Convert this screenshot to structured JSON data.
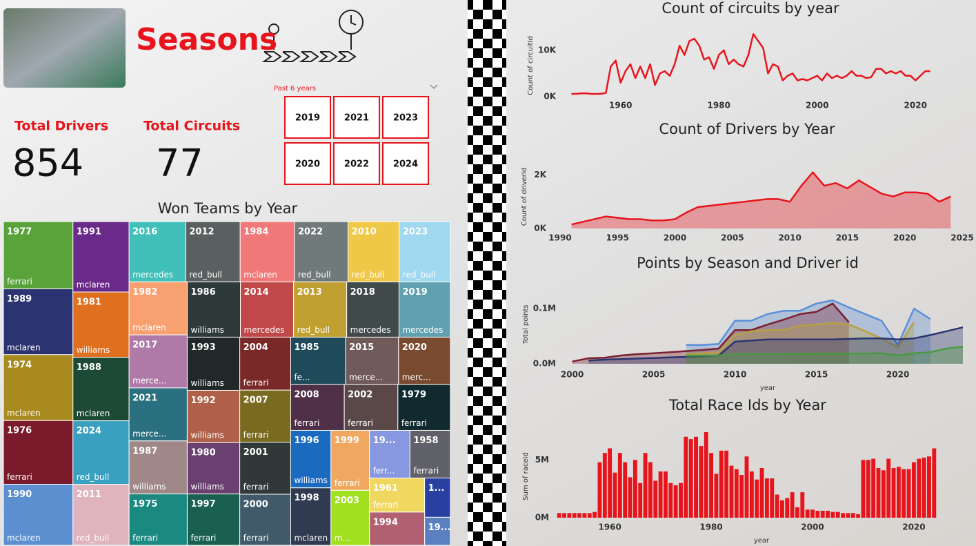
{
  "header": {
    "title": "Seasons"
  },
  "kpis": [
    {
      "label": "Total Drivers",
      "value": 854
    },
    {
      "label": "Total Circuits",
      "value": 77
    }
  ],
  "slicer": {
    "label": "Past 6 years",
    "options": [
      2019,
      2020,
      2021,
      2022,
      2023,
      2024
    ]
  },
  "chart_data": [
    {
      "type": "treemap",
      "title": "Won Teams by Year",
      "items": [
        {
          "label": "1977",
          "team": "ferrari",
          "value": 97,
          "color": "#5aa33a"
        },
        {
          "label": "1989",
          "team": "mclaren",
          "value": 95,
          "color": "#2b3470"
        },
        {
          "label": "1974",
          "team": "mclaren",
          "value": 95,
          "color": "#a88a1e"
        },
        {
          "label": "1976",
          "team": "ferrari",
          "value": 92,
          "color": "#7a1a2a"
        },
        {
          "label": "1990",
          "team": "mclaren",
          "value": 88,
          "color": "#5b8fd0"
        },
        {
          "label": "1991",
          "team": "mclaren",
          "value": 82,
          "color": "#6a2a8a"
        },
        {
          "label": "1981",
          "team": "williams",
          "value": 76,
          "color": "#e07020"
        },
        {
          "label": "1988",
          "team": "mclaren",
          "value": 74,
          "color": "#1d4a35"
        },
        {
          "label": "2024",
          "team": "red_bull",
          "value": 74,
          "color": "#3aa0c0"
        },
        {
          "label": "2011",
          "team": "red_bull",
          "value": 71,
          "color": "#e0b4bc"
        },
        {
          "label": "2016",
          "team": "mercedes",
          "value": 71,
          "color": "#40c0b8"
        },
        {
          "label": "2012",
          "team": "red_bull",
          "value": 68,
          "color": "#5a6060"
        },
        {
          "label": "1984",
          "team": "mclaren",
          "value": 68,
          "color": "#f07878"
        },
        {
          "label": "2022",
          "team": "red_bull",
          "value": 67,
          "color": "#707a7a"
        },
        {
          "label": "2010",
          "team": "red_bull",
          "value": 64,
          "color": "#f0c848"
        },
        {
          "label": "2023",
          "team": "red_bull",
          "value": 64,
          "color": "#a0d8f0"
        },
        {
          "label": "1982",
          "team": "mclaren",
          "value": 64,
          "color": "#f8a070"
        },
        {
          "label": "2017",
          "team": "merce...",
          "value": 64,
          "color": "#b07aa8"
        },
        {
          "label": "2021",
          "team": "merce...",
          "value": 64,
          "color": "#2a7080"
        },
        {
          "label": "1987",
          "team": "williams",
          "value": 64,
          "color": "#a08888"
        },
        {
          "label": "1975",
          "team": "ferrari",
          "value": 62,
          "color": "#1a8a80"
        },
        {
          "label": "1986",
          "team": "williams",
          "value": 61,
          "color": "#2e3a3a"
        },
        {
          "label": "2014",
          "team": "mercedes",
          "value": 61,
          "color": "#c04848"
        },
        {
          "label": "2013",
          "team": "red_bull",
          "value": 61,
          "color": "#c0a030"
        },
        {
          "label": "2018",
          "team": "mercedes",
          "value": 60,
          "color": "#404a4a"
        },
        {
          "label": "2019",
          "team": "mercedes",
          "value": 59,
          "color": "#60a0b0"
        },
        {
          "label": "1993",
          "team": "williams",
          "value": 58,
          "color": "#202828"
        },
        {
          "label": "1992",
          "team": "williams",
          "value": 57,
          "color": "#b06048"
        },
        {
          "label": "1980",
          "team": "williams",
          "value": 56,
          "color": "#6a4070"
        },
        {
          "label": "1997",
          "team": "ferrari",
          "value": 56,
          "color": "#1a6050"
        },
        {
          "label": "2004",
          "team": "ferrari",
          "value": 56,
          "color": "#7a2828"
        },
        {
          "label": "2007",
          "team": "ferrari",
          "value": 55,
          "color": "#7a6a20"
        },
        {
          "label": "2001",
          "team": "ferrari",
          "value": 55,
          "color": "#303838"
        },
        {
          "label": "2000",
          "team": "ferrari",
          "value": 54,
          "color": "#405a6a"
        },
        {
          "label": "1985",
          "team": "fe...",
          "value": 54,
          "color": "#1e4a5a"
        },
        {
          "label": "2015",
          "team": "merce...",
          "value": 52,
          "color": "#705a5a"
        },
        {
          "label": "2020",
          "team": "merc...",
          "value": 51,
          "color": "#7a4a30"
        },
        {
          "label": "2008",
          "team": "ferrari",
          "value": 51,
          "color": "#503048"
        },
        {
          "label": "2002",
          "team": "ferrari",
          "value": 51,
          "color": "#5a4848"
        },
        {
          "label": "1979",
          "team": "ferrari",
          "value": 50,
          "color": "#102a30"
        },
        {
          "label": "1996",
          "team": "williams",
          "value": 48,
          "color": "#1a6abf"
        },
        {
          "label": "1998",
          "team": "mclaren",
          "value": 48,
          "color": "#303a50"
        },
        {
          "label": "1999",
          "team": "ferrari",
          "value": 48,
          "color": "#f0a860"
        },
        {
          "label": "2003",
          "team": "m...",
          "value": 44,
          "color": "#a0e020"
        },
        {
          "label": "19...",
          "team": "ferr...",
          "value": 40,
          "color": "#8898e0"
        },
        {
          "label": "1958",
          "team": "ferrari",
          "value": 40,
          "color": "#606068"
        },
        {
          "label": "1961",
          "team": "ferrari",
          "value": 39,
          "color": "#f0d860"
        },
        {
          "label": "1994",
          "value": 38,
          "color": "#b06070"
        },
        {
          "label": "1...",
          "value": 21,
          "color": "#2840a0"
        },
        {
          "label": "19...",
          "value": 15,
          "color": "#5a80c0"
        }
      ]
    },
    {
      "type": "line",
      "title": "Count of circuits by year",
      "y_label": "Count of circuitId",
      "color": "#e8141c",
      "x": [
        1950,
        1951,
        1952,
        1953,
        1954,
        1955,
        1956,
        1957,
        1958,
        1959,
        1960,
        1961,
        1962,
        1963,
        1964,
        1965,
        1966,
        1967,
        1968,
        1969,
        1970,
        1971,
        1972,
        1973,
        1974,
        1975,
        1976,
        1977,
        1978,
        1979,
        1980,
        1981,
        1982,
        1983,
        1984,
        1985,
        1986,
        1987,
        1988,
        1989,
        1990,
        1991,
        1992,
        1993,
        1994,
        1995,
        1996,
        1997,
        1998,
        1999,
        2000,
        2001,
        2002,
        2003,
        2004,
        2005,
        2006,
        2007,
        2008,
        2009,
        2010,
        2011,
        2012,
        2013,
        2014,
        2015,
        2016,
        2017,
        2018,
        2019,
        2020,
        2021,
        2022,
        2023
      ],
      "values": [
        600,
        600,
        700,
        700,
        600,
        600,
        600,
        800,
        6500,
        7800,
        3000,
        5500,
        7000,
        4000,
        6500,
        4000,
        7000,
        2500,
        5000,
        5500,
        4500,
        7000,
        11000,
        9000,
        12000,
        12500,
        11000,
        8000,
        8500,
        6000,
        9000,
        10000,
        7000,
        8000,
        7000,
        6500,
        9000,
        13500,
        12000,
        10500,
        5000,
        7000,
        6500,
        3500,
        4500,
        5000,
        3500,
        3800,
        3500,
        4000,
        4500,
        3500,
        5000,
        4000,
        4500,
        4000,
        4500,
        5500,
        4500,
        4500,
        4000,
        4200,
        6000,
        6000,
        5000,
        5500,
        5000,
        5500,
        4500,
        4500,
        3500,
        4500,
        5500,
        5500
      ],
      "xlim": [
        1946,
        2026
      ],
      "xticks": [
        1960,
        1980,
        2000,
        2020
      ],
      "ylim": [
        0,
        14000
      ],
      "yticks": [
        {
          "value": 0,
          "label": "0K"
        },
        {
          "value": 10000,
          "label": "10K"
        }
      ]
    },
    {
      "type": "area",
      "title": "Count of Drivers by Year",
      "y_label": "Count of driverId",
      "color": "#e8141c",
      "x": [
        1991,
        1992,
        1993,
        1994,
        1995,
        1996,
        1997,
        1998,
        1999,
        2000,
        2001,
        2002,
        2003,
        2004,
        2005,
        2006,
        2007,
        2008,
        2009,
        2010,
        2011,
        2012,
        2013,
        2014,
        2015,
        2016,
        2017,
        2018,
        2019,
        2020,
        2021,
        2022,
        2023,
        2024
      ],
      "values": [
        150,
        250,
        350,
        450,
        400,
        350,
        350,
        300,
        300,
        350,
        600,
        800,
        850,
        900,
        950,
        1000,
        1050,
        1100,
        1100,
        1000,
        1600,
        2100,
        1600,
        1700,
        1500,
        1800,
        1550,
        1300,
        1200,
        1350,
        1350,
        1300,
        1000,
        1200
      ],
      "xlim": [
        1990,
        2025
      ],
      "xticks": [
        1990,
        1995,
        2000,
        2005,
        2010,
        2015,
        2020,
        2025
      ],
      "ylim": [
        0,
        2300
      ],
      "yticks": [
        {
          "value": 0,
          "label": "0K"
        },
        {
          "value": 2000,
          "label": "2K"
        }
      ]
    },
    {
      "type": "area",
      "title": "Points by Season and Driver id",
      "y_label": "Total points",
      "x_label": "year",
      "x": [
        2000,
        2001,
        2002,
        2003,
        2004,
        2005,
        2006,
        2007,
        2008,
        2009,
        2010,
        2011,
        2012,
        2013,
        2014,
        2015,
        2016,
        2017,
        2018,
        2019,
        2020,
        2021,
        2022,
        2023,
        2024
      ],
      "series": [
        {
          "color": "#5b8fd6",
          "values": [
            null,
            null,
            null,
            null,
            null,
            null,
            null,
            34000,
            34000,
            36000,
            78000,
            78000,
            90000,
            96000,
            96000,
            109000,
            115000,
            102000,
            90000,
            78000,
            34000,
            100000,
            81000,
            null,
            null
          ]
        },
        {
          "color": "#7b1f2e",
          "values": [
            4000,
            10000,
            11000,
            15000,
            17500,
            19000,
            21000,
            23000,
            25000,
            27500,
            61000,
            61000,
            71000,
            80000,
            90000,
            94000,
            109000,
            75000,
            null,
            null,
            null,
            null,
            null,
            null,
            null
          ]
        },
        {
          "color": "#b8a040",
          "values": [
            null,
            null,
            null,
            null,
            null,
            null,
            null,
            17500,
            19000,
            21000,
            52000,
            59000,
            61000,
            61000,
            69000,
            71000,
            74000,
            71000,
            59000,
            46000,
            30000,
            75000,
            null,
            null,
            null
          ]
        },
        {
          "color": "#2a3470",
          "values": [
            null,
            6000,
            7500,
            8500,
            9500,
            10500,
            11500,
            12500,
            13500,
            15000,
            40000,
            42000,
            44000,
            44000,
            44000,
            44000,
            44000,
            45000,
            46000,
            46000,
            44000,
            46000,
            52000,
            59000,
            66000
          ]
        },
        {
          "color": "#4a9a40",
          "values": [
            null,
            null,
            null,
            null,
            null,
            null,
            null,
            15000,
            15000,
            15000,
            17500,
            17500,
            17500,
            17500,
            18000,
            18000,
            18500,
            18500,
            18500,
            19000,
            15000,
            19000,
            21000,
            27500,
            31000
          ]
        }
      ],
      "xlim": [
        1999,
        2024
      ],
      "xticks": [
        2000,
        2005,
        2010,
        2015,
        2020
      ],
      "ylim": [
        0,
        130000
      ],
      "yticks": [
        {
          "value": 0,
          "label": "0.0M"
        },
        {
          "value": 100000,
          "label": "0.1M"
        }
      ]
    },
    {
      "type": "bar",
      "title": "Total Race Ids by Year",
      "y_label": "Sum of raceId",
      "x_label": "year",
      "color": "#e8141c",
      "x": [
        1950,
        1951,
        1952,
        1953,
        1954,
        1955,
        1956,
        1957,
        1958,
        1959,
        1960,
        1961,
        1962,
        1963,
        1964,
        1965,
        1966,
        1967,
        1968,
        1969,
        1970,
        1971,
        1972,
        1973,
        1974,
        1975,
        1976,
        1977,
        1978,
        1979,
        1980,
        1981,
        1982,
        1983,
        1984,
        1985,
        1986,
        1987,
        1988,
        1989,
        1990,
        1991,
        1992,
        1993,
        1994,
        1995,
        1996,
        1997,
        1998,
        1999,
        2000,
        2001,
        2002,
        2003,
        2004,
        2005,
        2006,
        2007,
        2008,
        2009,
        2010,
        2011,
        2012,
        2013,
        2014,
        2015,
        2016,
        2017,
        2018,
        2019,
        2020,
        2021,
        2022,
        2023,
        2024
      ],
      "values": [
        400000,
        400000,
        400000,
        400000,
        400000,
        400000,
        400000,
        500000,
        4800000,
        5600000,
        6000000,
        3900000,
        5600000,
        4800000,
        3500000,
        5000000,
        3000000,
        5600000,
        4800000,
        3200000,
        4000000,
        4000000,
        3000000,
        2800000,
        3000000,
        7000000,
        6800000,
        7000000,
        6200000,
        7400000,
        5600000,
        3800000,
        5800000,
        5800000,
        4500000,
        4200000,
        3700000,
        5300000,
        4000000,
        3300000,
        4300000,
        3400000,
        3400000,
        2000000,
        1500000,
        1700000,
        2200000,
        900000,
        2200000,
        700000,
        700000,
        600000,
        600000,
        600000,
        500000,
        500000,
        400000,
        400000,
        400000,
        300000,
        5000000,
        5000000,
        5100000,
        4300000,
        4100000,
        5100000,
        4300000,
        4400000,
        4200000,
        4200000,
        4800000,
        5100000,
        5200000,
        5300000,
        6000000
      ],
      "xlim": [
        1948,
        2026
      ],
      "xticks": [
        1960,
        1980,
        2000,
        2020
      ],
      "ylim": [
        0,
        8000000
      ],
      "yticks": [
        {
          "value": 0,
          "label": "0M"
        },
        {
          "value": 5000000,
          "label": "5M"
        }
      ]
    }
  ]
}
